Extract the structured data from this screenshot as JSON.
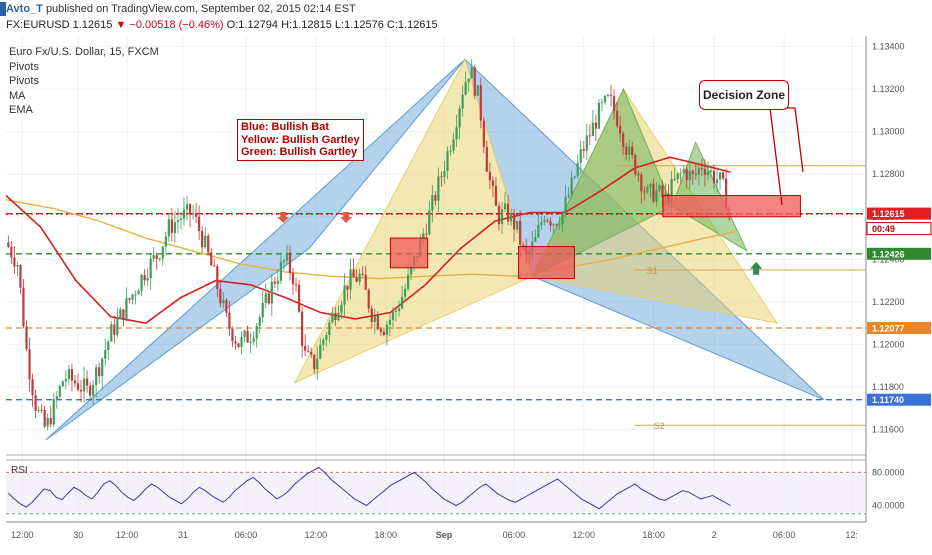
{
  "header": {
    "author": "Avto_T",
    "published": "published on TradingView.com, September 02, 2015 02:14 EST",
    "symbol": "FX:EURUSD",
    "last": "1.12615",
    "change": "▼ −0.00518 (−0.46%)",
    "ohlc": "O:1.12794 H:1.12815 L:1.12576 C:1.12615"
  },
  "legend": {
    "title": "Euro Fx/U.S. Dollar, 15, FXCM",
    "items": [
      "Pivots",
      "Pivots",
      "MA",
      "EMA"
    ]
  },
  "annotation": {
    "lines": [
      "Blue: Bullish Bat",
      "Yellow: Bullish Gartley",
      "Green: Bullish Gartley"
    ]
  },
  "callout": {
    "label": "Decision Zone"
  },
  "colors": {
    "blue_pattern": "#5b9bd5",
    "yellow_pattern": "#e8cf6a",
    "green_pattern": "#70b25a",
    "ma_red": "#d62020",
    "ema_orange": "#e8b040",
    "zone_red": "#f05a5a",
    "rsi_line": "#3a3aa8",
    "candle_up": "#3b9e5a",
    "candle_down": "#c23a3a"
  },
  "chart_data": [
    {
      "type": "candlestick",
      "title": "Euro Fx/U.S. Dollar, 15, FXCM",
      "ylim": [
        1.1148,
        1.1345
      ],
      "y_ticks": [
        "1.13400",
        "1.13200",
        "1.13000",
        "1.12800",
        "1.12600",
        "1.12400",
        "1.12200",
        "1.12000",
        "1.11800",
        "1.11600"
      ],
      "x_ticks": [
        "12:00",
        "30",
        "12:00",
        "31",
        "06:00",
        "12:00",
        "18:00",
        "Sep",
        "06:00",
        "12:00",
        "18:00",
        "2",
        "06:00",
        "12:"
      ],
      "x_ticks_pos": [
        0.7,
        3.1,
        5.2,
        7.6,
        10.3,
        13.3,
        16.3,
        18.8,
        21.8,
        24.8,
        27.8,
        30.4,
        33.4,
        36.3
      ],
      "price_path": [
        [
          0.0,
          1.1248
        ],
        [
          0.5,
          1.1238
        ],
        [
          0.9,
          1.1195
        ],
        [
          1.3,
          1.117
        ],
        [
          1.7,
          1.116
        ],
        [
          2.1,
          1.1172
        ],
        [
          2.5,
          1.1185
        ],
        [
          3.0,
          1.1182
        ],
        [
          3.5,
          1.1178
        ],
        [
          4.0,
          1.119
        ],
        [
          4.5,
          1.1205
        ],
        [
          5.0,
          1.1215
        ],
        [
          5.5,
          1.1225
        ],
        [
          6.0,
          1.1235
        ],
        [
          6.5,
          1.1242
        ],
        [
          7.0,
          1.1255
        ],
        [
          7.5,
          1.126
        ],
        [
          8.0,
          1.1262
        ],
        [
          8.5,
          1.1248
        ],
        [
          9.0,
          1.123
        ],
        [
          9.5,
          1.121
        ],
        [
          10.0,
          1.12
        ],
        [
          10.5,
          1.1205
        ],
        [
          11.0,
          1.1215
        ],
        [
          11.5,
          1.123
        ],
        [
          12.0,
          1.124
        ],
        [
          12.4,
          1.123
        ],
        [
          12.8,
          1.1195
        ],
        [
          13.2,
          1.119
        ],
        [
          13.7,
          1.1205
        ],
        [
          14.2,
          1.1218
        ],
        [
          14.7,
          1.123
        ],
        [
          15.2,
          1.1232
        ],
        [
          15.7,
          1.1215
        ],
        [
          16.2,
          1.1208
        ],
        [
          16.7,
          1.1215
        ],
        [
          17.2,
          1.1228
        ],
        [
          17.7,
          1.1245
        ],
        [
          18.2,
          1.1262
        ],
        [
          18.7,
          1.128
        ],
        [
          19.2,
          1.13
        ],
        [
          19.6,
          1.132
        ],
        [
          19.9,
          1.133
        ],
        [
          20.3,
          1.1315
        ],
        [
          20.7,
          1.128
        ],
        [
          21.1,
          1.126
        ],
        [
          21.5,
          1.1262
        ],
        [
          21.9,
          1.1255
        ],
        [
          22.3,
          1.124
        ],
        [
          22.7,
          1.1248
        ],
        [
          23.1,
          1.1262
        ],
        [
          23.5,
          1.1258
        ],
        [
          23.9,
          1.1262
        ],
        [
          24.3,
          1.1275
        ],
        [
          24.7,
          1.129
        ],
        [
          25.1,
          1.13
        ],
        [
          25.5,
          1.131
        ],
        [
          25.9,
          1.1315
        ],
        [
          26.3,
          1.1305
        ],
        [
          26.7,
          1.129
        ],
        [
          27.1,
          1.1282
        ],
        [
          27.5,
          1.127
        ],
        [
          27.9,
          1.1272
        ],
        [
          28.3,
          1.1268
        ],
        [
          28.7,
          1.1276
        ],
        [
          29.1,
          1.1282
        ],
        [
          29.5,
          1.1278
        ],
        [
          29.9,
          1.1285
        ],
        [
          30.3,
          1.128
        ],
        [
          30.7,
          1.1276
        ],
        [
          31.1,
          1.1262
        ]
      ],
      "horizontal_lines": [
        {
          "value": 1.12615,
          "label": "1.12615",
          "color": "#e02020",
          "style": "dashed"
        },
        {
          "value": 1.12613,
          "label": "1.12613",
          "color": "#c00000",
          "style": "dotted"
        },
        {
          "value": 1.12426,
          "label": "1.12426",
          "color": "#2f8a2f",
          "style": "dashed"
        },
        {
          "value": 1.12077,
          "label": "1.12077",
          "color": "#e8852a",
          "style": "dashed"
        },
        {
          "value": 1.1174,
          "label": "1.11740",
          "color": "#3a70d8",
          "style": "dashed"
        }
      ],
      "timer_label": "00:49",
      "pivot_levels": [
        {
          "name": "S1",
          "value": 1.1235
        },
        {
          "name": "S2",
          "value": 1.1162
        }
      ],
      "pivot_line_value": 1.1284,
      "ma_path": [
        [
          0.0,
          1.127
        ],
        [
          1.5,
          1.1255
        ],
        [
          3.0,
          1.123
        ],
        [
          4.5,
          1.1213
        ],
        [
          6.0,
          1.121
        ],
        [
          7.5,
          1.1222
        ],
        [
          9.0,
          1.123
        ],
        [
          10.5,
          1.1228
        ],
        [
          12.0,
          1.1222
        ],
        [
          13.5,
          1.1215
        ],
        [
          15.0,
          1.1212
        ],
        [
          16.5,
          1.1215
        ],
        [
          18.0,
          1.1228
        ],
        [
          19.5,
          1.1245
        ],
        [
          21.0,
          1.1258
        ],
        [
          22.5,
          1.1262
        ],
        [
          24.0,
          1.1262
        ],
        [
          25.5,
          1.1272
        ],
        [
          27.0,
          1.1283
        ],
        [
          28.5,
          1.1288
        ],
        [
          30.0,
          1.1284
        ],
        [
          31.1,
          1.1281
        ]
      ],
      "ema_path": [
        [
          0.0,
          1.1268
        ],
        [
          2.0,
          1.1264
        ],
        [
          4.0,
          1.1258
        ],
        [
          6.0,
          1.125
        ],
        [
          8.0,
          1.1244
        ],
        [
          10.0,
          1.1238
        ],
        [
          12.0,
          1.1234
        ],
        [
          14.0,
          1.1232
        ],
        [
          16.0,
          1.1231
        ],
        [
          18.0,
          1.1232
        ],
        [
          20.0,
          1.1233
        ],
        [
          22.0,
          1.1232
        ],
        [
          24.0,
          1.1236
        ],
        [
          26.0,
          1.124
        ],
        [
          28.0,
          1.1245
        ],
        [
          30.0,
          1.125
        ],
        [
          31.3,
          1.1253
        ]
      ],
      "patterns": [
        {
          "name": "Bullish Bat",
          "color": "#5b9bd5",
          "points": [
            [
              1.7,
              1.1155
            ],
            [
              13.0,
              1.1245
            ],
            [
              19.7,
              1.1334
            ],
            [
              22.6,
              1.1232
            ],
            [
              35.1,
              1.1174
            ]
          ]
        },
        {
          "name": "Bullish Gartley",
          "color": "#e8cf6a",
          "points": [
            [
              12.4,
              1.1182
            ],
            [
              19.7,
              1.1334
            ],
            [
              22.6,
              1.1232
            ],
            [
              26.5,
              1.132
            ],
            [
              33.1,
              1.121
            ]
          ]
        },
        {
          "name": "Bullish Gartley",
          "color": "#70b25a",
          "points": [
            [
              22.6,
              1.1232
            ],
            [
              26.5,
              1.132
            ],
            [
              28.6,
              1.1265
            ],
            [
              29.6,
              1.1295
            ],
            [
              31.8,
              1.1244
            ]
          ]
        }
      ],
      "zones": [
        {
          "x0": 16.5,
          "x1": 18.1,
          "y0": 1.1236,
          "y1": 1.125
        },
        {
          "x0": 22.0,
          "x1": 24.4,
          "y0": 1.1231,
          "y1": 1.1246
        },
        {
          "x0": 28.2,
          "x1": 34.1,
          "y0": 1.126,
          "y1": 1.127
        }
      ],
      "arrows": [
        {
          "dir": "down",
          "x": 11.9,
          "y": 1.1258
        },
        {
          "dir": "down",
          "x": 14.6,
          "y": 1.1258
        },
        {
          "dir": "up",
          "x": 32.2,
          "y": 1.1237
        }
      ]
    },
    {
      "type": "line",
      "title": "RSI",
      "ylim": [
        20,
        95
      ],
      "y_ticks": [
        "80.0000",
        "40.0000"
      ],
      "levels": [
        80,
        30
      ],
      "values": [
        55,
        48,
        42,
        38,
        44,
        52,
        60,
        58,
        50,
        47,
        55,
        62,
        58,
        52,
        48,
        56,
        66,
        70,
        64,
        56,
        50,
        46,
        52,
        60,
        66,
        62,
        56,
        50,
        46,
        42,
        48,
        56,
        62,
        58,
        52,
        48,
        44,
        50,
        58,
        64,
        70,
        74,
        68,
        60,
        54,
        48,
        52,
        58,
        66,
        72,
        78,
        82,
        86,
        80,
        72,
        66,
        60,
        54,
        48,
        44,
        40,
        46,
        52,
        58,
        64,
        68,
        72,
        76,
        80,
        74,
        68,
        60,
        54,
        48,
        44,
        40,
        44,
        50,
        56,
        62,
        66,
        60,
        54,
        50,
        46,
        44,
        48,
        52,
        56,
        60,
        64,
        68,
        72,
        66,
        60,
        54,
        48,
        44,
        40,
        36,
        42,
        48,
        54,
        58,
        62,
        66,
        60,
        56,
        52,
        48,
        46,
        50,
        54,
        58,
        56,
        52,
        48,
        50,
        52,
        48,
        44,
        40
      ]
    }
  ]
}
